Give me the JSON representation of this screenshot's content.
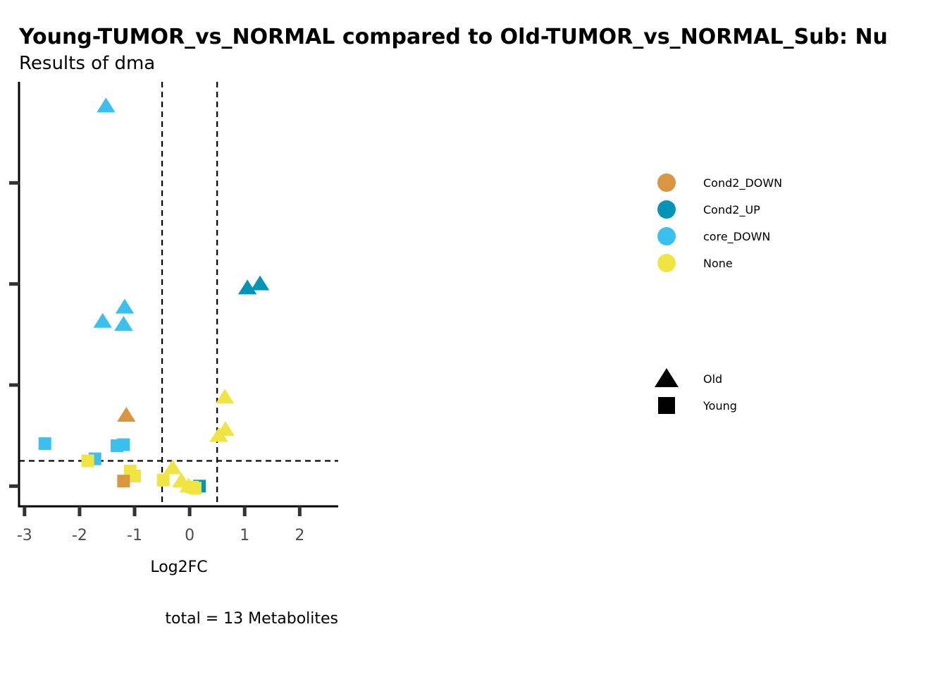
{
  "chart_data": {
    "type": "scatter",
    "title": "Young-TUMOR_vs_NORMAL compared to Old-TUMOR_vs_NORMAL_Sub: Nu",
    "subtitle": "Results of dma",
    "xlabel": "Log2FC",
    "ylabel": "",
    "caption": "total = 13 Metabolites",
    "xlim": [
      -3.1,
      2.7
    ],
    "ylim": [
      0,
      4.2
    ],
    "x_ticks": [
      -3,
      -2,
      -1,
      0,
      1,
      2
    ],
    "x_tick_labels": [
      "-3",
      "-2",
      "-1",
      "0",
      "1",
      "2"
    ],
    "y_ticks": [
      0.2,
      1.2,
      2.2,
      3.2
    ],
    "y_tick_labels": [
      "",
      "",
      "",
      ""
    ],
    "vlines": [
      -0.5,
      0.5
    ],
    "hline": 0.45,
    "grid": false,
    "legend_position": "right",
    "colors": {
      "Cond2_DOWN": "#DA9540",
      "Cond2_UP": "#0494B8",
      "core_DOWN": "#3AC0EE",
      "None": "#F0E442"
    },
    "legend": {
      "color_entries": [
        "Cond2_DOWN",
        "Cond2_UP",
        "core_DOWN",
        "None"
      ],
      "shape_entries": [
        {
          "label": "Old",
          "shape": "triangle"
        },
        {
          "label": "Young",
          "shape": "square"
        }
      ]
    },
    "points": [
      {
        "x": -1.52,
        "y": 3.96,
        "shape": "triangle",
        "group": "core_DOWN"
      },
      {
        "x": 1.28,
        "y": 2.2,
        "shape": "triangle",
        "group": "Cond2_UP"
      },
      {
        "x": 1.05,
        "y": 2.16,
        "shape": "triangle",
        "group": "Cond2_UP"
      },
      {
        "x": -1.18,
        "y": 1.97,
        "shape": "triangle",
        "group": "core_DOWN"
      },
      {
        "x": -1.58,
        "y": 1.83,
        "shape": "triangle",
        "group": "core_DOWN"
      },
      {
        "x": -1.2,
        "y": 1.8,
        "shape": "triangle",
        "group": "core_DOWN"
      },
      {
        "x": -1.15,
        "y": 0.9,
        "shape": "triangle",
        "group": "Cond2_DOWN"
      },
      {
        "x": 0.64,
        "y": 1.08,
        "shape": "triangle",
        "group": "None"
      },
      {
        "x": 0.65,
        "y": 0.76,
        "shape": "triangle",
        "group": "None"
      },
      {
        "x": 0.53,
        "y": 0.7,
        "shape": "triangle",
        "group": "None"
      },
      {
        "x": -0.31,
        "y": 0.38,
        "shape": "triangle",
        "group": "None"
      },
      {
        "x": -0.15,
        "y": 0.25,
        "shape": "triangle",
        "group": "None"
      },
      {
        "x": -0.02,
        "y": 0.2,
        "shape": "triangle",
        "group": "None"
      },
      {
        "x": -2.63,
        "y": 0.62,
        "shape": "square",
        "group": "core_DOWN"
      },
      {
        "x": -1.32,
        "y": 0.6,
        "shape": "square",
        "group": "core_DOWN"
      },
      {
        "x": -1.2,
        "y": 0.61,
        "shape": "square",
        "group": "core_DOWN"
      },
      {
        "x": -1.72,
        "y": 0.47,
        "shape": "square",
        "group": "core_DOWN"
      },
      {
        "x": -1.85,
        "y": 0.45,
        "shape": "square",
        "group": "None"
      },
      {
        "x": -1.08,
        "y": 0.35,
        "shape": "square",
        "group": "None"
      },
      {
        "x": -1.0,
        "y": 0.3,
        "shape": "square",
        "group": "None"
      },
      {
        "x": -1.2,
        "y": 0.25,
        "shape": "square",
        "group": "Cond2_DOWN"
      },
      {
        "x": -0.48,
        "y": 0.26,
        "shape": "square",
        "group": "None"
      },
      {
        "x": 0.18,
        "y": 0.2,
        "shape": "square",
        "group": "Cond2_UP"
      },
      {
        "x": 0.05,
        "y": 0.19,
        "shape": "square",
        "group": "None"
      },
      {
        "x": 0.1,
        "y": 0.18,
        "shape": "square",
        "group": "None"
      }
    ]
  }
}
